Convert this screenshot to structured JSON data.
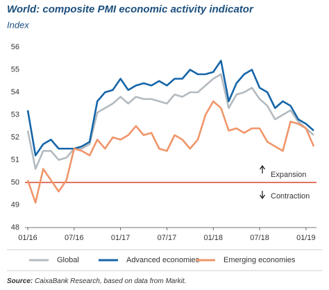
{
  "chart_data": {
    "type": "line",
    "title": "World: composite PMI economic activity indicator",
    "subtitle": "Index",
    "categories": [
      "01/16",
      null,
      null,
      null,
      null,
      null,
      "07/16",
      null,
      null,
      null,
      null,
      null,
      "01/17",
      null,
      null,
      null,
      null,
      null,
      "07/17",
      null,
      null,
      null,
      null,
      null,
      "01/18",
      null,
      null,
      null,
      null,
      null,
      "07/18",
      null,
      null,
      null,
      null,
      null,
      "01/19",
      null
    ],
    "series": [
      {
        "name": "Global",
        "color": "#b3babf",
        "values": [
          52.3,
          50.6,
          51.4,
          51.4,
          51.0,
          51.1,
          51.5,
          51.5,
          51.7,
          53.1,
          53.3,
          53.5,
          53.8,
          53.5,
          53.8,
          53.7,
          53.7,
          53.6,
          53.5,
          53.9,
          53.8,
          54.0,
          54.0,
          54.3,
          54.6,
          54.8,
          53.3,
          53.9,
          54.0,
          54.2,
          53.7,
          53.4,
          52.8,
          53.0,
          53.2,
          52.7,
          52.4,
          52.1
        ]
      },
      {
        "name": "Advanced economies",
        "color": "#1565a8",
        "values": [
          53.2,
          51.2,
          51.7,
          51.9,
          51.5,
          51.5,
          51.5,
          51.6,
          51.8,
          53.6,
          54.0,
          54.1,
          54.6,
          54.1,
          54.3,
          54.4,
          54.3,
          54.5,
          54.3,
          54.6,
          54.6,
          55.0,
          54.8,
          54.8,
          54.9,
          55.4,
          53.6,
          54.4,
          54.8,
          55.0,
          54.2,
          54.0,
          53.3,
          53.6,
          53.4,
          52.8,
          52.6,
          52.3
        ]
      },
      {
        "name": "Emerging economies",
        "color": "#f0956a",
        "values": [
          50.1,
          49.1,
          50.6,
          50.1,
          49.6,
          50.1,
          51.5,
          51.4,
          51.2,
          51.9,
          51.5,
          52.0,
          51.9,
          52.1,
          52.5,
          52.1,
          52.2,
          51.5,
          51.4,
          52.1,
          51.9,
          51.5,
          51.9,
          53.0,
          53.6,
          53.3,
          52.3,
          52.4,
          52.2,
          52.4,
          52.4,
          51.8,
          51.6,
          51.4,
          52.7,
          52.6,
          52.4,
          51.6
        ]
      }
    ],
    "ylim": [
      48,
      56
    ],
    "yticks": [
      48,
      49,
      50,
      51,
      52,
      53,
      54,
      55,
      56
    ],
    "grid": false,
    "reference_line": {
      "value": 50,
      "color": "#d9452b"
    },
    "annotations": [
      "Expansion",
      "Contraction"
    ],
    "legend": "bottom"
  },
  "source": {
    "label": "Source:",
    "text": "CaixaBank Research, based on data from Markit."
  }
}
